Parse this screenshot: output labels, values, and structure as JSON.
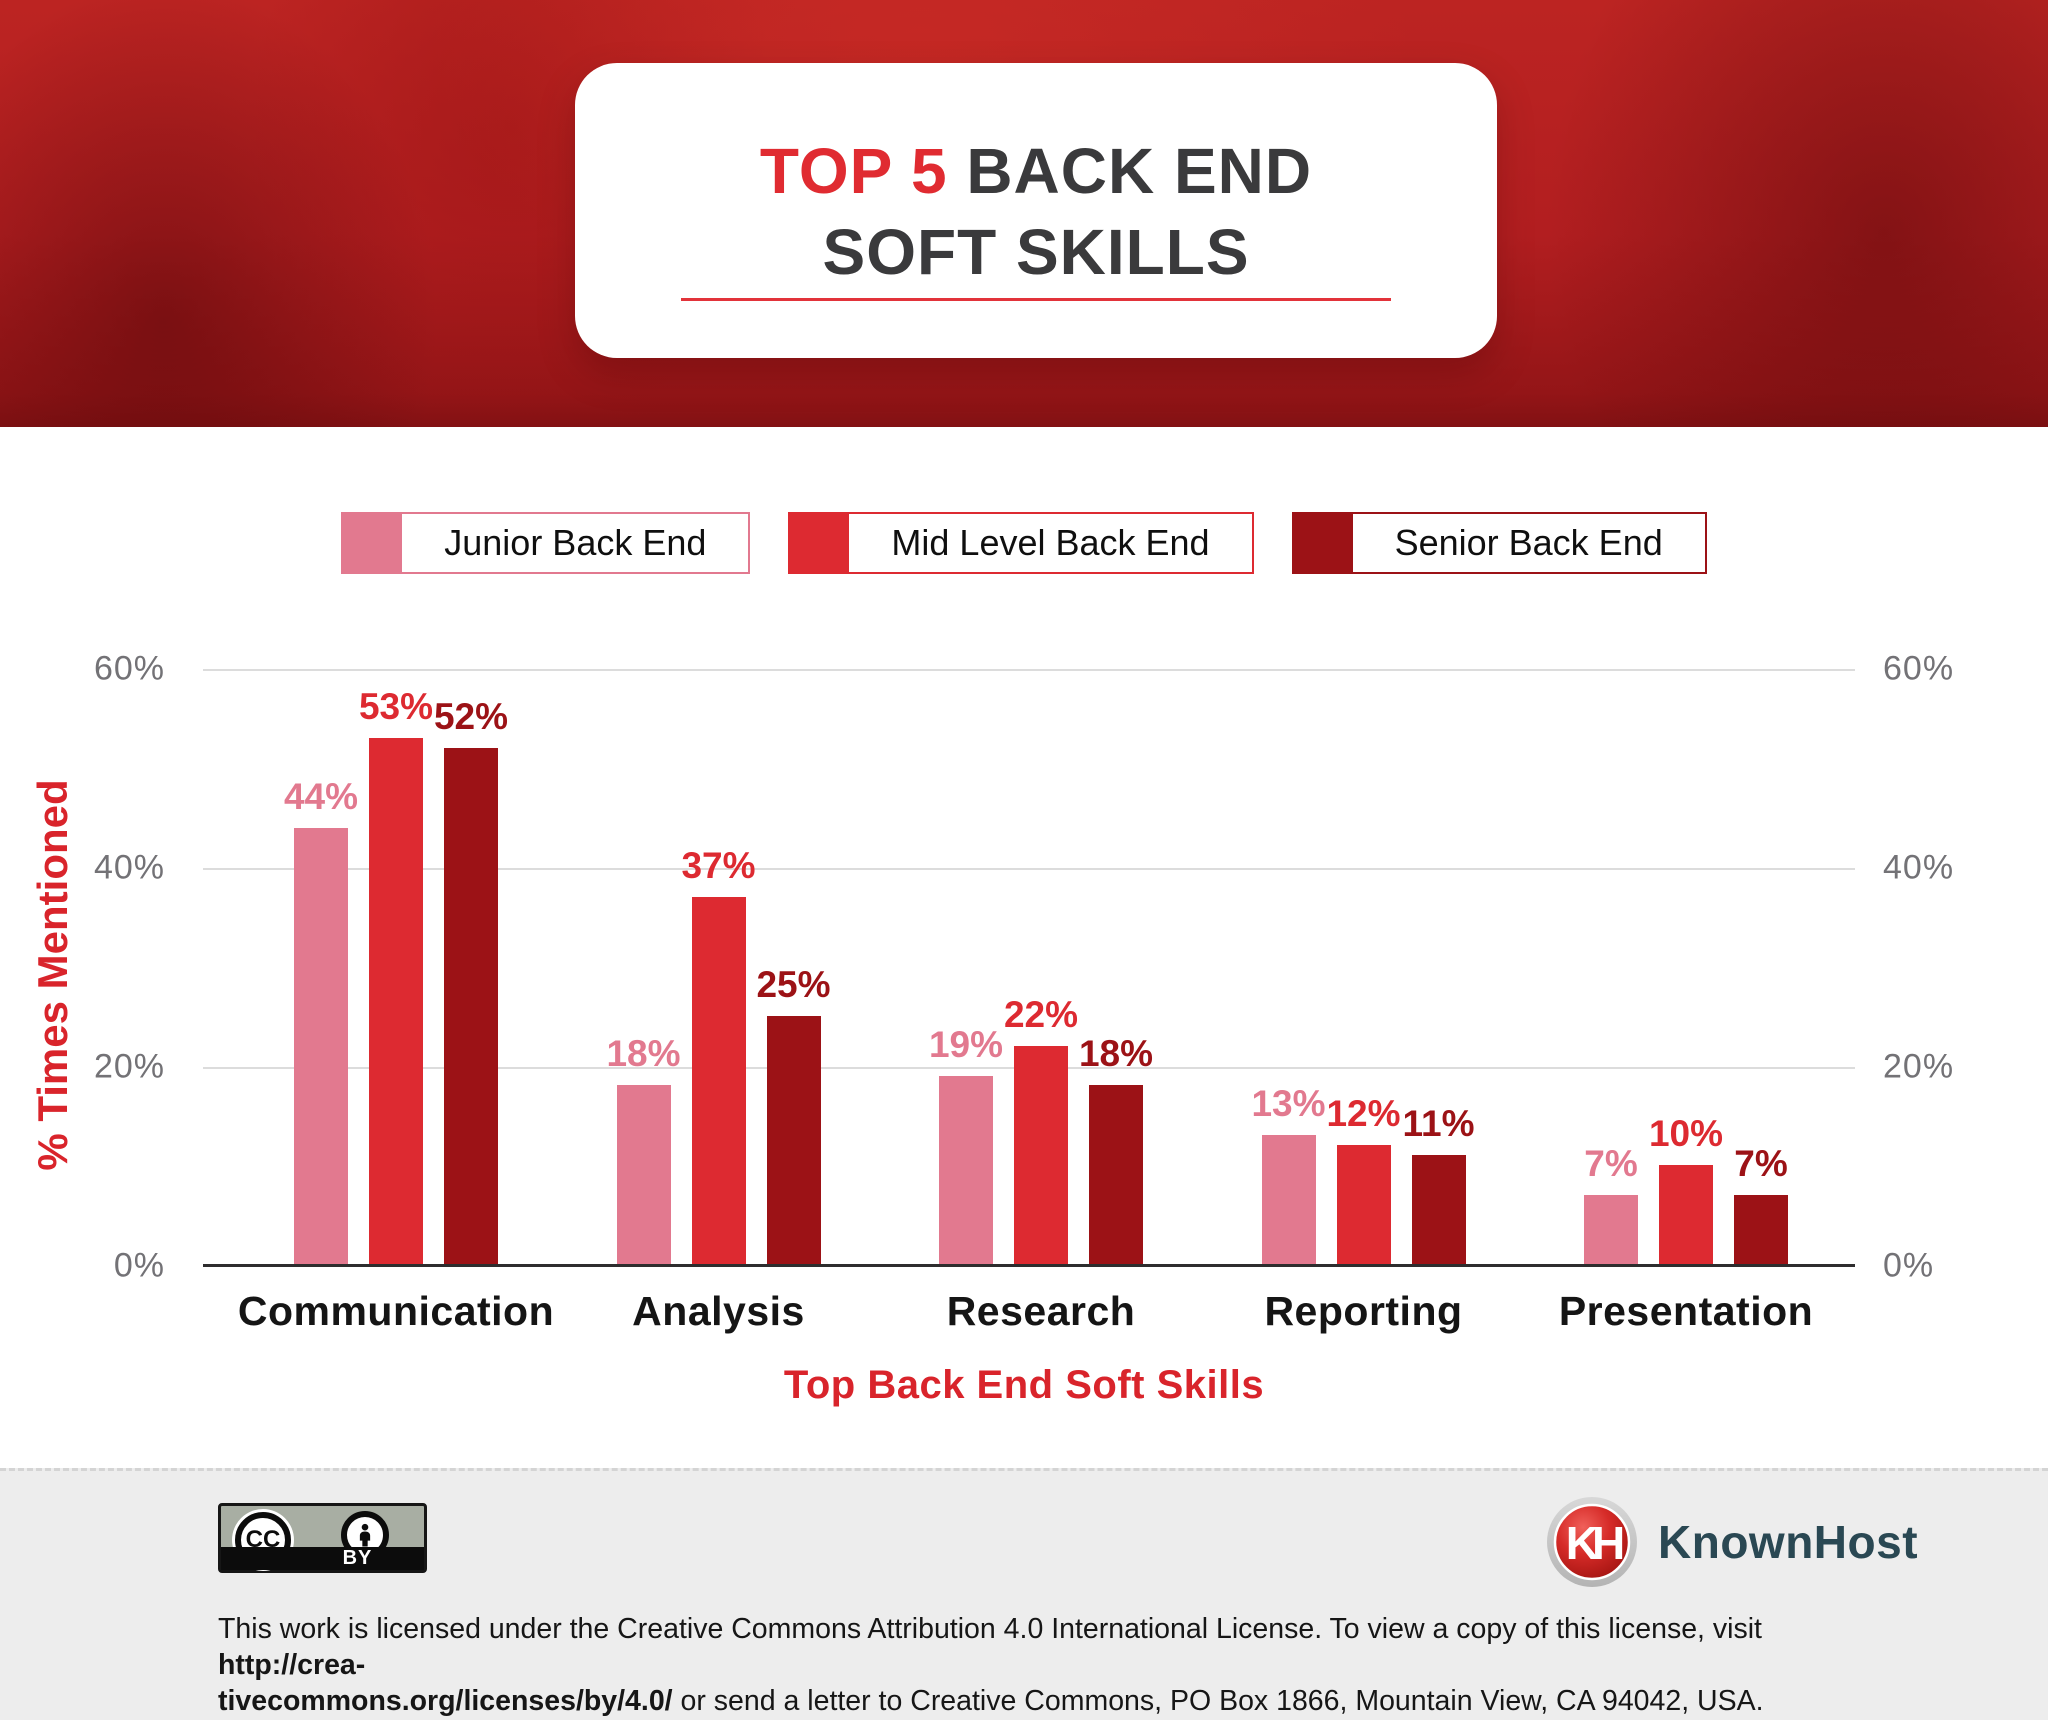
{
  "banner": {
    "title_part1": "TOP 5",
    "title_part2": " BACK END",
    "title_line2": "SOFT SKILLS"
  },
  "chart_data": {
    "type": "bar",
    "title": "Top 5 Back End Soft Skills",
    "categories": [
      "Communication",
      "Analysis",
      "Research",
      "Reporting",
      "Presentation"
    ],
    "series": [
      {
        "name": "Junior Back End",
        "color": "#e2798f",
        "values": [
          44,
          18,
          19,
          13,
          7
        ]
      },
      {
        "name": "Mid Level Back End",
        "color": "#dd2a31",
        "values": [
          53,
          37,
          22,
          12,
          10
        ]
      },
      {
        "name": "Senior Back End",
        "color": "#9c1216",
        "values": [
          52,
          25,
          18,
          11,
          7
        ]
      }
    ],
    "ylabel": "% Times Mentioned",
    "xlabel": "Top Back End Soft Skills",
    "ylim": [
      0,
      60
    ],
    "ytick_labels_top_to_bottom": [
      "60%",
      "40%",
      "20%",
      "0%"
    ],
    "grid": true,
    "legend_position": "top",
    "value_suffix": "%"
  },
  "footer": {
    "cc_badge": {
      "cc_label": "CC",
      "by_label": "BY"
    },
    "brand": {
      "monogram": "KH",
      "name": "KnownHost"
    },
    "license": {
      "line1_normal": "This work is licensed under the Creative Commons Attribution 4.0 International License. To view a copy of this license, visit ",
      "line1_bold": "http://crea-",
      "line2_bold": "tivecommons.org/licenses/by/4.0/",
      "line2_normal": " or send a letter to Creative Commons, PO Box 1866, Mountain View, CA 94042, USA."
    }
  },
  "colors": {
    "junior": "#e2798f",
    "mid": "#dd2a31",
    "senior": "#9c1216",
    "accent_red": "#d9242b",
    "title_dark": "#3a3a3c",
    "banner_red": "#b21e20",
    "gridline": "#dcdcdc",
    "footer_bg": "#ededed"
  }
}
